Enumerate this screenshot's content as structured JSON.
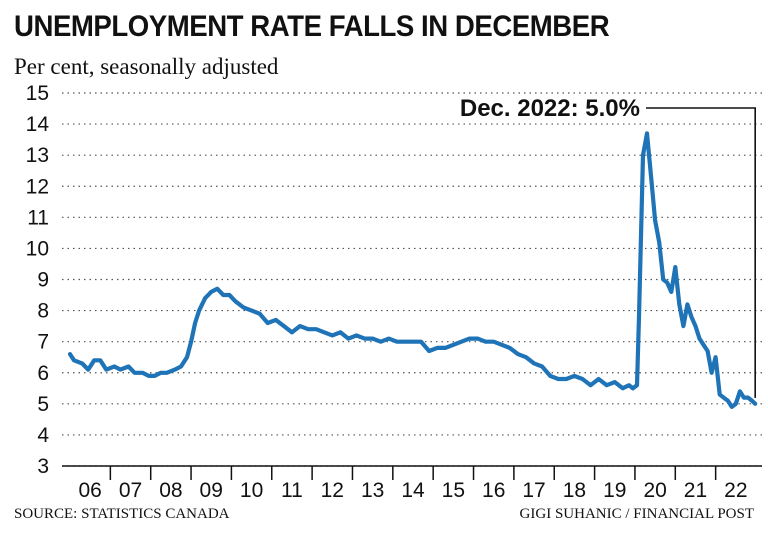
{
  "title": "UNEMPLOYMENT RATE FALLS IN DECEMBER",
  "subtitle": "Per cent, seasonally adjusted",
  "source": "SOURCE: STATISTICS CANADA",
  "credit": "GIGI SUHANIC / FINANCIAL POST",
  "colors": {
    "line": "#1f73b7",
    "grid": "#555555",
    "text": "#111111"
  },
  "chart_data": {
    "type": "line",
    "title": "UNEMPLOYMENT RATE FALLS IN DECEMBER",
    "subtitle": "Per cent, seasonally adjusted",
    "xlabel": "",
    "ylabel": "",
    "ylim": [
      3,
      15
    ],
    "xlim": [
      2006,
      2023
    ],
    "yticks": [
      3,
      4,
      5,
      6,
      7,
      8,
      9,
      10,
      11,
      12,
      13,
      14,
      15
    ],
    "xtick_labels": [
      "06",
      "07",
      "08",
      "09",
      "10",
      "11",
      "12",
      "13",
      "14",
      "15",
      "16",
      "17",
      "18",
      "19",
      "20",
      "21",
      "22"
    ],
    "grid": "horizontal dotted",
    "annotation": "Dec. 2022: 5.0%",
    "series": [
      {
        "values": [
          [
            2006.0,
            6.6
          ],
          [
            2006.1,
            6.4
          ],
          [
            2006.3,
            6.3
          ],
          [
            2006.45,
            6.1
          ],
          [
            2006.6,
            6.4
          ],
          [
            2006.75,
            6.4
          ],
          [
            2006.9,
            6.1
          ],
          [
            2007.1,
            6.2
          ],
          [
            2007.25,
            6.1
          ],
          [
            2007.45,
            6.2
          ],
          [
            2007.6,
            6.0
          ],
          [
            2007.8,
            6.0
          ],
          [
            2007.95,
            5.9
          ],
          [
            2008.1,
            5.9
          ],
          [
            2008.25,
            6.0
          ],
          [
            2008.4,
            6.0
          ],
          [
            2008.6,
            6.1
          ],
          [
            2008.75,
            6.2
          ],
          [
            2008.9,
            6.5
          ],
          [
            2009.0,
            7.0
          ],
          [
            2009.1,
            7.6
          ],
          [
            2009.2,
            8.0
          ],
          [
            2009.35,
            8.4
          ],
          [
            2009.5,
            8.6
          ],
          [
            2009.65,
            8.7
          ],
          [
            2009.8,
            8.5
          ],
          [
            2009.95,
            8.5
          ],
          [
            2010.1,
            8.3
          ],
          [
            2010.3,
            8.1
          ],
          [
            2010.5,
            8.0
          ],
          [
            2010.7,
            7.9
          ],
          [
            2010.9,
            7.6
          ],
          [
            2011.1,
            7.7
          ],
          [
            2011.3,
            7.5
          ],
          [
            2011.5,
            7.3
          ],
          [
            2011.7,
            7.5
          ],
          [
            2011.9,
            7.4
          ],
          [
            2012.1,
            7.4
          ],
          [
            2012.3,
            7.3
          ],
          [
            2012.5,
            7.2
          ],
          [
            2012.7,
            7.3
          ],
          [
            2012.9,
            7.1
          ],
          [
            2013.1,
            7.2
          ],
          [
            2013.3,
            7.1
          ],
          [
            2013.5,
            7.1
          ],
          [
            2013.7,
            7.0
          ],
          [
            2013.9,
            7.1
          ],
          [
            2014.1,
            7.0
          ],
          [
            2014.3,
            7.0
          ],
          [
            2014.5,
            7.0
          ],
          [
            2014.7,
            7.0
          ],
          [
            2014.9,
            6.7
          ],
          [
            2015.1,
            6.8
          ],
          [
            2015.3,
            6.8
          ],
          [
            2015.5,
            6.9
          ],
          [
            2015.7,
            7.0
          ],
          [
            2015.9,
            7.1
          ],
          [
            2016.1,
            7.1
          ],
          [
            2016.3,
            7.0
          ],
          [
            2016.5,
            7.0
          ],
          [
            2016.7,
            6.9
          ],
          [
            2016.9,
            6.8
          ],
          [
            2017.1,
            6.6
          ],
          [
            2017.3,
            6.5
          ],
          [
            2017.5,
            6.3
          ],
          [
            2017.7,
            6.2
          ],
          [
            2017.9,
            5.9
          ],
          [
            2018.1,
            5.8
          ],
          [
            2018.3,
            5.8
          ],
          [
            2018.5,
            5.9
          ],
          [
            2018.7,
            5.8
          ],
          [
            2018.9,
            5.6
          ],
          [
            2019.1,
            5.8
          ],
          [
            2019.3,
            5.6
          ],
          [
            2019.5,
            5.7
          ],
          [
            2019.7,
            5.5
          ],
          [
            2019.85,
            5.6
          ],
          [
            2019.95,
            5.5
          ],
          [
            2020.05,
            5.6
          ],
          [
            2020.1,
            7.8
          ],
          [
            2020.2,
            13.0
          ],
          [
            2020.3,
            13.7
          ],
          [
            2020.4,
            12.3
          ],
          [
            2020.5,
            10.9
          ],
          [
            2020.6,
            10.2
          ],
          [
            2020.7,
            9.0
          ],
          [
            2020.8,
            8.9
          ],
          [
            2020.9,
            8.6
          ],
          [
            2021.0,
            9.4
          ],
          [
            2021.1,
            8.2
          ],
          [
            2021.2,
            7.5
          ],
          [
            2021.3,
            8.2
          ],
          [
            2021.4,
            7.8
          ],
          [
            2021.5,
            7.5
          ],
          [
            2021.6,
            7.1
          ],
          [
            2021.7,
            6.9
          ],
          [
            2021.8,
            6.7
          ],
          [
            2021.9,
            6.0
          ],
          [
            2022.0,
            6.5
          ],
          [
            2022.1,
            5.3
          ],
          [
            2022.2,
            5.2
          ],
          [
            2022.3,
            5.1
          ],
          [
            2022.4,
            4.9
          ],
          [
            2022.5,
            5.0
          ],
          [
            2022.6,
            5.4
          ],
          [
            2022.7,
            5.2
          ],
          [
            2022.8,
            5.2
          ],
          [
            2022.9,
            5.1
          ],
          [
            2022.98,
            5.0
          ]
        ]
      }
    ]
  }
}
